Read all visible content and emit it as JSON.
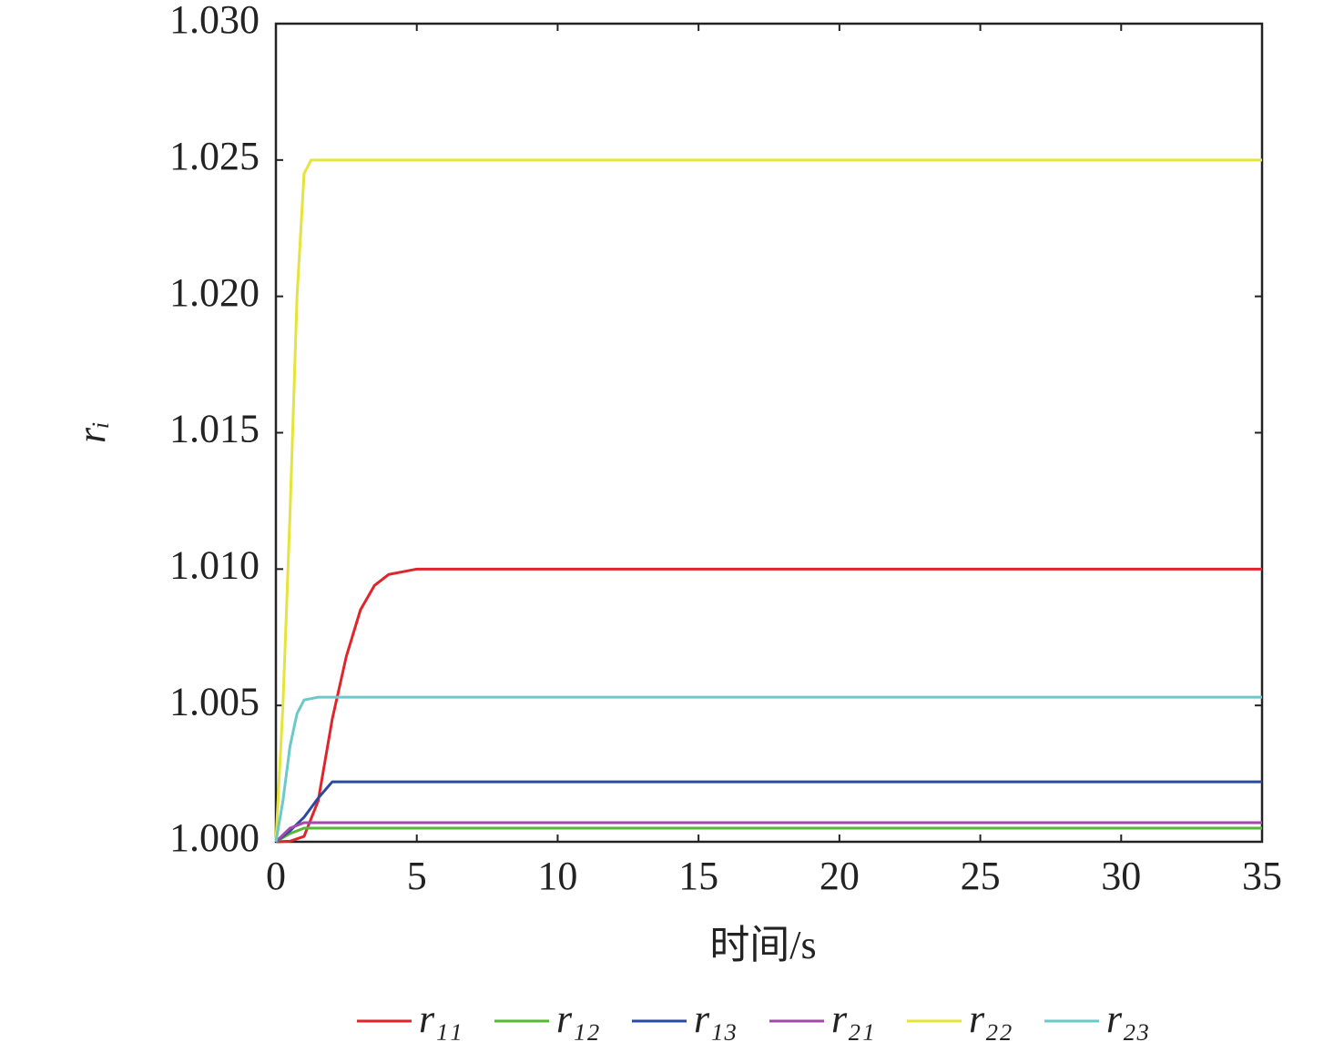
{
  "chart_data": {
    "type": "line",
    "x_label": "时间/s",
    "y_label": "rᵢ",
    "xlim": [
      0,
      35
    ],
    "xticks": [
      0,
      5,
      10,
      15,
      20,
      25,
      30,
      35
    ],
    "ylim": [
      1,
      1.03
    ],
    "yticks": [
      {
        "value": 1,
        "label": "1.000"
      },
      {
        "value": 1.005,
        "label": "1.005"
      },
      {
        "value": 1.01,
        "label": "1.010"
      },
      {
        "value": 1.015,
        "label": "1.015"
      },
      {
        "value": 1.02,
        "label": "1.020"
      },
      {
        "value": 1.025,
        "label": "1.025"
      },
      {
        "value": 1.03,
        "label": "1.030"
      }
    ],
    "legend": "bottom",
    "series": [
      {
        "name": "r₁₁",
        "color": "#e0242b",
        "x": [
          0,
          0.5,
          1,
          1.5,
          2,
          2.5,
          3,
          3.5,
          4,
          5,
          35
        ],
        "values": [
          1,
          1.00002,
          1.0002,
          1.0015,
          1.0045,
          1.0068,
          1.0085,
          1.0094,
          1.0098,
          1.01,
          1.01
        ]
      },
      {
        "name": "r₁₂",
        "color": "#55b936",
        "x": [
          0,
          0.5,
          1,
          35
        ],
        "values": [
          1,
          1.0003,
          1.0005,
          1.0005
        ]
      },
      {
        "name": "r₁₃",
        "color": "#2a4aa2",
        "x": [
          0,
          0.5,
          1,
          1.5,
          2,
          35
        ],
        "values": [
          1,
          1.0004,
          1.0009,
          1.0016,
          1.0022,
          1.0022
        ]
      },
      {
        "name": "r₂₁",
        "color": "#a24aa8",
        "x": [
          0,
          0.5,
          1,
          35
        ],
        "values": [
          1,
          1.0005,
          1.0007,
          1.0007
        ]
      },
      {
        "name": "r₂₂",
        "color": "#e4e43a",
        "x": [
          0,
          0.25,
          0.5,
          0.75,
          1,
          1.25,
          35
        ],
        "values": [
          1,
          1.005,
          1.012,
          1.02,
          1.0245,
          1.025,
          1.025
        ]
      },
      {
        "name": "r₂₃",
        "color": "#6cc9c9",
        "x": [
          0,
          0.25,
          0.5,
          0.75,
          1,
          1.5,
          35
        ],
        "values": [
          1,
          1.0015,
          1.0035,
          1.0047,
          1.0052,
          1.0053,
          1.0053
        ]
      }
    ]
  }
}
